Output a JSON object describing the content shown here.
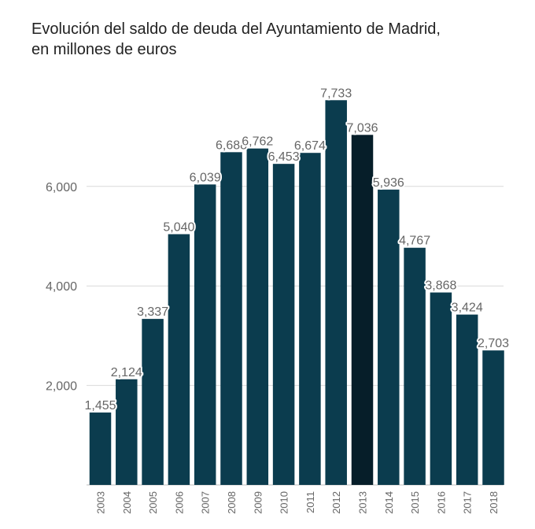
{
  "title": {
    "line1": "Evolución del saldo de deuda del Ayuntamiento de Madrid,",
    "line2": "en millones de euros"
  },
  "colors": {
    "bar": "#0b3c4e",
    "bar_highlight": "#061e29",
    "grid": "#d9d9d9",
    "axis_text": "#666666"
  },
  "chart_data": {
    "type": "bar",
    "title": "Evolución del saldo de deuda del Ayuntamiento de Madrid, en millones de euros",
    "categories": [
      "2003",
      "2004",
      "2005",
      "2006",
      "2007",
      "2008",
      "2009",
      "2010",
      "2011",
      "2012",
      "2013",
      "2014",
      "2015",
      "2016",
      "2017",
      "2018"
    ],
    "values": [
      1455,
      2124,
      3337,
      5040,
      6039,
      6688,
      6762,
      6453,
      6674,
      7733,
      7036,
      5936,
      4767,
      3868,
      3424,
      2703
    ],
    "data_labels": [
      "1,455",
      "2,124",
      "3,337",
      "5,040",
      "6,039",
      "6,688",
      "6,762",
      "6,453",
      "6,674",
      "7,733",
      "7,036",
      "5,936",
      "4,767",
      "3,868",
      "3,424",
      "2,703"
    ],
    "highlight_category": "2013",
    "y_ticks": [
      2000,
      4000,
      6000
    ],
    "y_tick_labels": [
      "2,000",
      "4,000",
      "6,000"
    ],
    "ylim": [
      0,
      8000
    ],
    "grid": true,
    "legend": "none"
  }
}
